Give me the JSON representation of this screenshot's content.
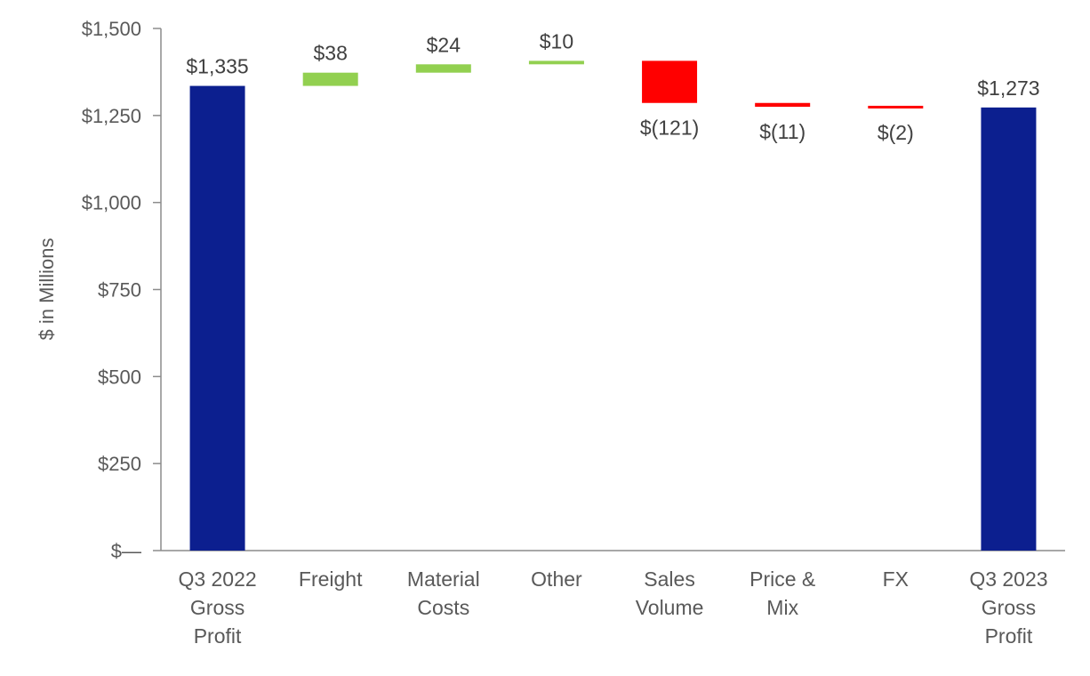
{
  "chart_data": {
    "type": "bar",
    "subtype": "waterfall",
    "title": "",
    "xlabel": "",
    "ylabel": "$ in Millions",
    "ylim": [
      0,
      1500
    ],
    "yticks": [
      {
        "value": 0,
        "label": "$—"
      },
      {
        "value": 250,
        "label": "$250"
      },
      {
        "value": 500,
        "label": "$500"
      },
      {
        "value": 750,
        "label": "$750"
      },
      {
        "value": 1000,
        "label": "$1,000"
      },
      {
        "value": 1250,
        "label": "$1,250"
      },
      {
        "value": 1500,
        "label": "$1,500"
      }
    ],
    "grid": false,
    "legend": "none",
    "categories": [
      [
        "Q3 2022",
        "Gross",
        "Profit"
      ],
      [
        "Freight"
      ],
      [
        "Material",
        "Costs"
      ],
      [
        "Other"
      ],
      [
        "Sales",
        "Volume"
      ],
      [
        "Price &",
        "Mix"
      ],
      [
        "FX"
      ],
      [
        "Q3 2023",
        "Gross",
        "Profit"
      ]
    ],
    "values": [
      1335,
      38,
      24,
      10,
      -121,
      -11,
      -2,
      1273
    ],
    "kinds": [
      "total",
      "delta",
      "delta",
      "delta",
      "delta",
      "delta",
      "delta",
      "total"
    ],
    "data_labels": [
      "$1,335",
      "$38",
      "$24",
      "$10",
      "$(121)",
      "$(11)",
      "$(2)",
      "$1,273"
    ],
    "colors": {
      "total": "#0c1f8f",
      "increase": "#92d050",
      "decrease": "#ff0000",
      "axis": "#8c8c8c",
      "text": "#595959"
    }
  }
}
